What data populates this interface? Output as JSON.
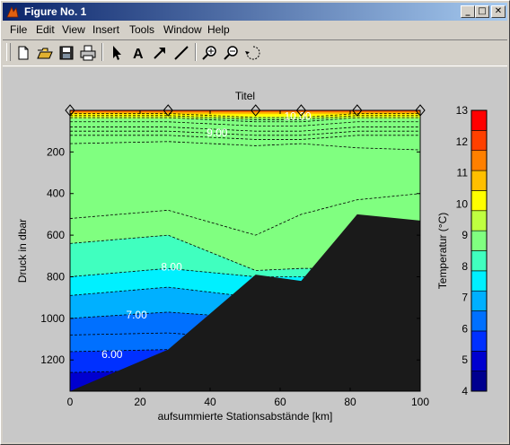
{
  "window": {
    "title": "Figure No. 1",
    "minimize": "_",
    "maximize": "□",
    "close": "✕"
  },
  "menu": {
    "items": [
      "File",
      "Edit",
      "View",
      "Insert",
      "Tools",
      "Window",
      "Help"
    ]
  },
  "toolbar": {
    "buttons": [
      "new-figure-icon",
      "open-file-icon",
      "save-icon",
      "print-icon",
      "edit-plot-arrow-icon",
      "insert-text-icon",
      "insert-arrow-icon",
      "insert-line-icon",
      "zoom-in-icon",
      "zoom-out-icon",
      "rotate-3d-icon"
    ]
  },
  "colors": {
    "land": "#1a1a1a",
    "colormap": [
      "#00008f",
      "#0000cf",
      "#0030ff",
      "#0070ff",
      "#00b0ff",
      "#00f0ff",
      "#40ffbf",
      "#80ff80",
      "#bfff40",
      "#ffff00",
      "#ffbf00",
      "#ff8000",
      "#ff4000",
      "#ff0000"
    ]
  },
  "chart_data": {
    "type": "contour",
    "title": "Titel",
    "xlabel": "aufsummierte Stationsabstände [km]",
    "ylabel": "Druck in dbar",
    "xlim": [
      0,
      100
    ],
    "ylim": [
      1350,
      0
    ],
    "y_reversed": true,
    "xticks": [
      "0",
      "20",
      "40",
      "60",
      "80",
      "100"
    ],
    "yticks": [
      "200",
      "400",
      "600",
      "800",
      "1000",
      "1200"
    ],
    "station_x": [
      0,
      28,
      53,
      66,
      82,
      100
    ],
    "bottom_depth": [
      1350,
      1150,
      790,
      820,
      500,
      530
    ],
    "contour_lines": [
      {
        "level": 9.5,
        "depth": [
          160,
          150,
          170,
          160,
          180,
          190
        ]
      },
      {
        "level": 9.0,
        "depth": [
          520,
          480,
          600,
          500,
          430,
          400
        ]
      },
      {
        "level": 8.5,
        "depth": [
          640,
          600,
          770,
          760,
          760,
          760
        ]
      },
      {
        "level": 8.0,
        "depth": [
          800,
          760,
          800,
          800,
          800,
          800
        ]
      },
      {
        "level": 7.5,
        "depth": [
          890,
          850,
          900,
          900,
          900,
          900
        ]
      },
      {
        "level": 7.0,
        "depth": [
          1000,
          970,
          1000,
          1000,
          1000,
          1000
        ]
      },
      {
        "level": 6.5,
        "depth": [
          1080,
          1070,
          1100,
          1100,
          1100,
          1100
        ]
      },
      {
        "level": 6.0,
        "depth": [
          1160,
          1150,
          1180,
          1180,
          1180,
          1180
        ]
      },
      {
        "level": 5.5,
        "depth": [
          1260,
          1250,
          1260,
          1260,
          1260,
          1260
        ]
      }
    ],
    "contour_labels": [
      {
        "text": "10.00",
        "x": 65,
        "y": 45
      },
      {
        "text": "9.00",
        "x": 42,
        "y": 125
      },
      {
        "text": "8.00",
        "x": 29,
        "y": 770
      },
      {
        "text": "7.00",
        "x": 19,
        "y": 1000
      },
      {
        "text": "6.00",
        "x": 12,
        "y": 1190
      }
    ],
    "colorbar": {
      "label": "Temperatur (°C)",
      "range": [
        4,
        13
      ],
      "ticks": [
        "4",
        "5",
        "6",
        "7",
        "8",
        "9",
        "10",
        "11",
        "12",
        "13"
      ]
    }
  }
}
